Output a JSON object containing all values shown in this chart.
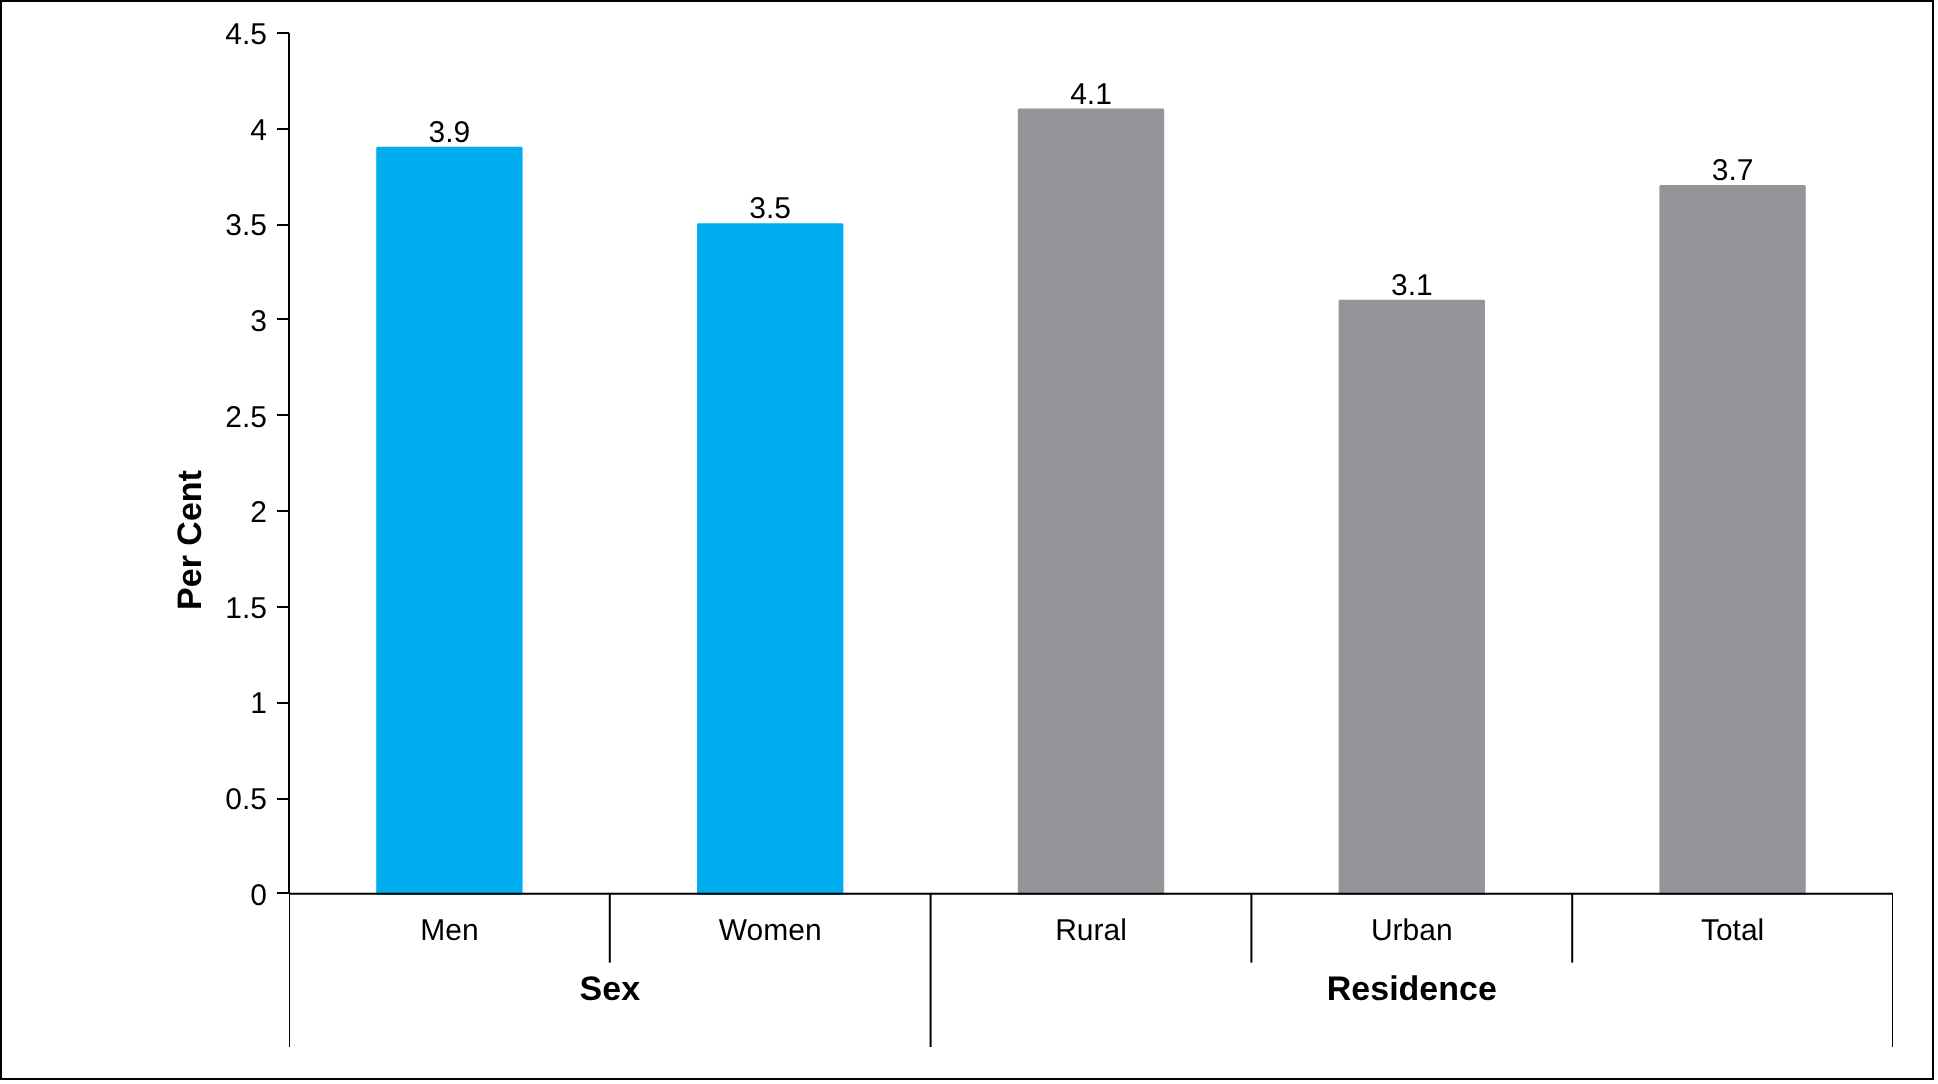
{
  "chart_data": {
    "type": "bar",
    "categories": [
      "Men",
      "Women",
      "Rural",
      "Urban",
      "Total"
    ],
    "values": [
      3.9,
      3.5,
      4.1,
      3.1,
      3.7
    ],
    "colors": [
      "#00aeef",
      "#00aeef",
      "#939598",
      "#939598",
      "#939598"
    ],
    "ylabel": "Per Cent",
    "ylim": [
      0,
      4.5
    ],
    "yticks": [
      0,
      0.5,
      1,
      1.5,
      2,
      2.5,
      3,
      3.5,
      4,
      4.5
    ],
    "annotations": [
      "Sex",
      "Residence"
    ],
    "data_labels": true,
    "grid": false
  }
}
